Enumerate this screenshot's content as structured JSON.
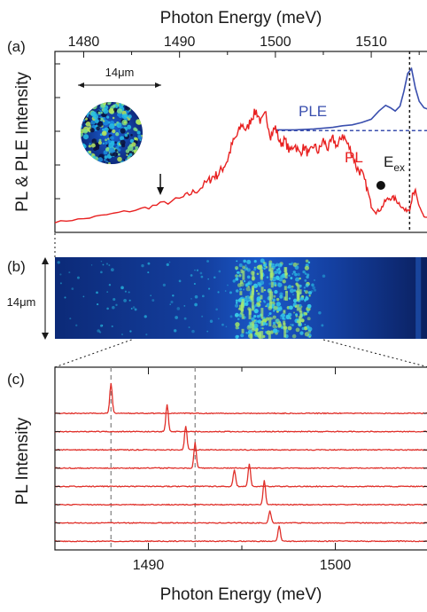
{
  "figure": {
    "top_xlabel": "Photon Energy (meV)",
    "bottom_xlabel": "Photon Energy (meV)",
    "panel_labels": [
      "(a)",
      "(b)",
      "(c)"
    ]
  },
  "chart_data": [
    {
      "panel": "(a)",
      "type": "line",
      "xlabel": "Photon Energy (meV)",
      "ylabel": "PL & PLE Intensity",
      "xlim": [
        1477,
        1516
      ],
      "xticks": [
        1480,
        1490,
        1500,
        1510
      ],
      "ylim": [
        0,
        1
      ],
      "grid": false,
      "series": [
        {
          "name": "PLE",
          "color": "#3a4fae",
          "x": [
            1500.0,
            1502,
            1504,
            1506,
            1507,
            1508,
            1509,
            1510,
            1510.8,
            1511.5,
            1512,
            1512.5,
            1513,
            1513.4,
            1513.8,
            1514.2,
            1514.6,
            1515,
            1515.5,
            1516
          ],
          "y": [
            0.585,
            0.585,
            0.59,
            0.6,
            0.61,
            0.615,
            0.63,
            0.65,
            0.7,
            0.735,
            0.72,
            0.7,
            0.73,
            0.82,
            0.93,
            0.96,
            0.84,
            0.76,
            0.72,
            0.71
          ]
        },
        {
          "name": "PL",
          "color": "#e82020",
          "x": [
            1477,
            1480,
            1483,
            1486,
            1488,
            1490,
            1491,
            1492,
            1493,
            1493.5,
            1494,
            1494.5,
            1495,
            1495.5,
            1496,
            1496.5,
            1497,
            1497.5,
            1498,
            1498.5,
            1499,
            1499.5,
            1500,
            1500.5,
            1501,
            1501.5,
            1502,
            1502.5,
            1503,
            1503.5,
            1504,
            1504.5,
            1505,
            1505.5,
            1506,
            1506.5,
            1507,
            1507.5,
            1508,
            1508.5,
            1509,
            1509.5,
            1510,
            1510.5,
            1511,
            1511.5,
            1512,
            1512.5,
            1513,
            1513.5,
            1514,
            1514.3,
            1514.6,
            1515,
            1515.5,
            1516
          ],
          "y": [
            0.02,
            0.04,
            0.07,
            0.1,
            0.13,
            0.16,
            0.19,
            0.22,
            0.27,
            0.3,
            0.31,
            0.35,
            0.4,
            0.5,
            0.55,
            0.62,
            0.58,
            0.66,
            0.7,
            0.63,
            0.68,
            0.55,
            0.6,
            0.5,
            0.52,
            0.45,
            0.5,
            0.44,
            0.48,
            0.43,
            0.49,
            0.45,
            0.52,
            0.47,
            0.53,
            0.48,
            0.56,
            0.5,
            0.44,
            0.35,
            0.32,
            0.24,
            0.12,
            0.08,
            0.1,
            0.15,
            0.17,
            0.16,
            0.13,
            0.09,
            0.1,
            0.18,
            0.2,
            0.12,
            0.05,
            0.04
          ]
        }
      ],
      "hline_y": 0.58,
      "vline_x": 1514,
      "annotations": {
        "ple_label": "PLE",
        "pl_label": "PL",
        "eex_main": "E",
        "eex_sub": "ex",
        "scale_label": "14μm",
        "arrow_x": 1488,
        "dot_x": 1511
      }
    },
    {
      "panel": "(b)",
      "type": "heatmap",
      "ylabel": "14μm",
      "colormap": [
        "#0b0f3a",
        "#15308f",
        "#1b63d8",
        "#27c1e6",
        "#7fe08a"
      ],
      "bright_band_x": [
        1495,
        1505
      ],
      "bright_spots_x": [
        1496.5,
        1497.5,
        1498.5,
        1499.5,
        1501,
        1502.5
      ]
    },
    {
      "panel": "(c)",
      "type": "line",
      "xlabel": "Photon Energy (meV)",
      "ylabel": "PL Intensity",
      "xlim": [
        1485,
        1505
      ],
      "xticks": [
        1490,
        1500
      ],
      "color": "#e0302a",
      "dashed_vlines_x": [
        1488,
        1492.5
      ],
      "spectra_peaks": [
        [
          {
            "x": 1488.0,
            "h": 1.0
          }
        ],
        [
          {
            "x": 1491.0,
            "h": 0.9
          }
        ],
        [
          {
            "x": 1492.0,
            "h": 0.8
          }
        ],
        [
          {
            "x": 1492.5,
            "h": 0.85
          }
        ],
        [
          {
            "x": 1494.6,
            "h": 0.55
          },
          {
            "x": 1495.4,
            "h": 0.75
          }
        ],
        [
          {
            "x": 1496.2,
            "h": 0.8
          }
        ],
        [
          {
            "x": 1496.5,
            "h": 0.4
          }
        ],
        [
          {
            "x": 1497.0,
            "h": 0.5
          }
        ]
      ]
    }
  ]
}
